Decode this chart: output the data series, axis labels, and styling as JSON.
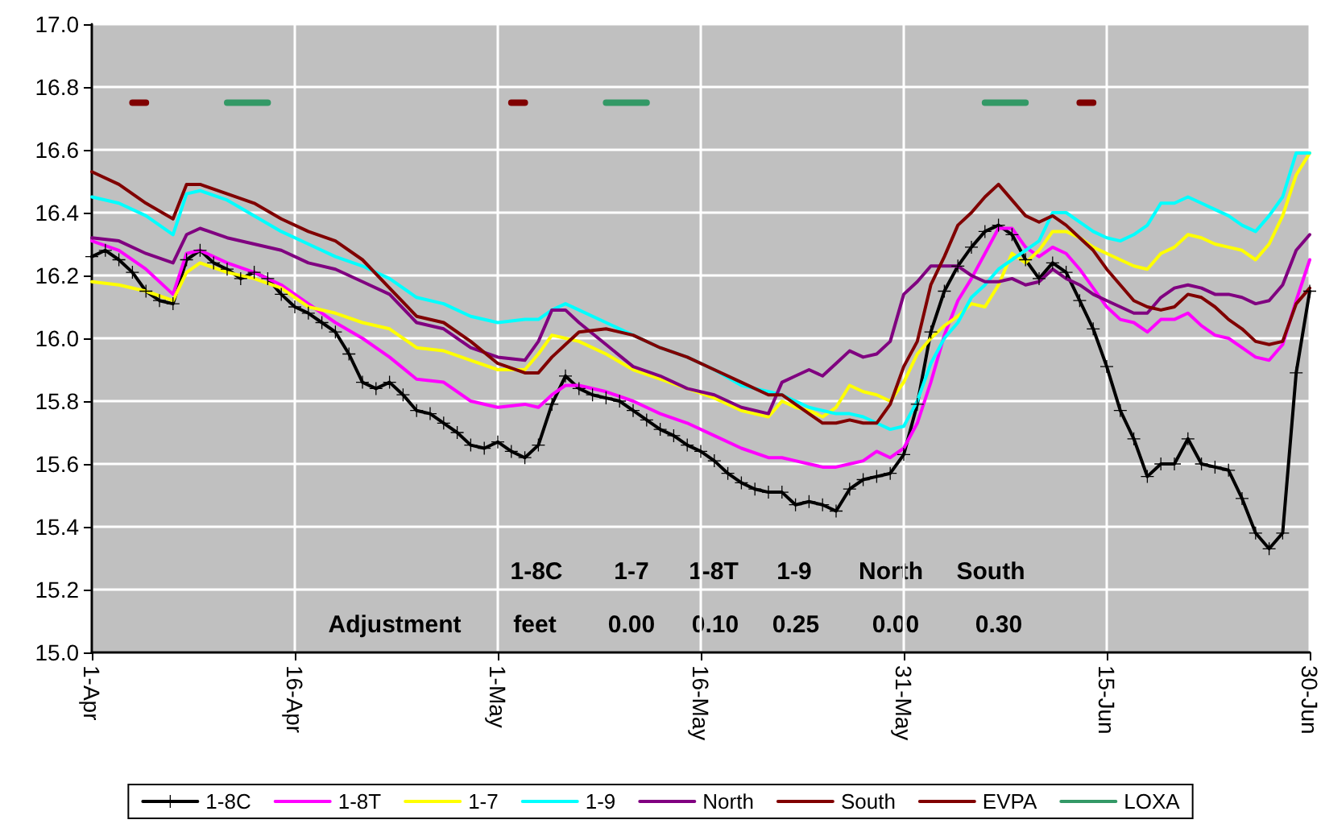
{
  "chart_data": {
    "type": "line",
    "x": [
      "--04-01",
      "--04-03",
      "--04-05",
      "--04-07",
      "--04-08",
      "--04-09",
      "--04-11",
      "--04-13",
      "--04-15",
      "--04-17",
      "--04-19",
      "--04-21",
      "--04-23",
      "--04-25",
      "--04-27",
      "--04-29",
      "--05-01",
      "--05-03",
      "--05-04",
      "--05-05",
      "--05-06",
      "--05-07",
      "--05-09",
      "--05-11",
      "--05-13",
      "--05-15",
      "--05-17",
      "--05-19",
      "--05-21",
      "--05-22",
      "--05-23",
      "--05-24",
      "--05-25",
      "--05-26",
      "--05-27",
      "--05-28",
      "--05-29",
      "--05-30",
      "--05-31",
      "--06-01",
      "--06-02",
      "--06-03",
      "--06-04",
      "--06-05",
      "--06-06",
      "--06-07",
      "--06-08",
      "--06-09",
      "--06-10",
      "--06-11",
      "--06-12",
      "--06-13",
      "--06-14",
      "--06-15",
      "--06-16",
      "--06-17",
      "--06-18",
      "--06-19",
      "--06-20",
      "--06-21",
      "--06-22",
      "--06-23",
      "--06-24",
      "--06-25",
      "--06-26",
      "--06-27",
      "--06-28",
      "--06-29",
      "--06-30"
    ],
    "series": [
      {
        "name": "1-8C",
        "color": "#000000",
        "marker": "cross",
        "x": [
          "--04-01",
          "--04-02",
          "--04-03",
          "--04-04",
          "--04-05",
          "--04-06",
          "--04-07",
          "--04-08",
          "--04-09",
          "--04-10",
          "--04-11",
          "--04-12",
          "--04-13",
          "--04-14",
          "--04-15",
          "--04-16",
          "--04-17",
          "--04-18",
          "--04-19",
          "--04-20",
          "--04-21",
          "--04-22",
          "--04-23",
          "--04-24",
          "--04-25",
          "--04-26",
          "--04-27",
          "--04-28",
          "--04-29",
          "--04-30",
          "--05-01",
          "--05-02",
          "--05-03",
          "--05-04",
          "--05-05",
          "--05-06",
          "--05-07",
          "--05-08",
          "--05-09",
          "--05-10",
          "--05-11",
          "--05-12",
          "--05-13",
          "--05-14",
          "--05-15",
          "--05-16",
          "--05-17",
          "--05-18",
          "--05-19",
          "--05-20",
          "--05-21",
          "--05-22",
          "--05-23",
          "--05-24",
          "--05-25",
          "--05-26",
          "--05-27",
          "--05-28",
          "--05-29",
          "--05-30",
          "--05-31",
          "--06-01",
          "--06-02",
          "--06-03",
          "--06-04",
          "--06-05",
          "--06-06",
          "--06-07",
          "--06-08",
          "--06-09",
          "--06-10",
          "--06-11",
          "--06-12",
          "--06-13",
          "--06-14",
          "--06-15",
          "--06-16",
          "--06-17",
          "--06-18",
          "--06-19",
          "--06-20",
          "--06-21",
          "--06-22",
          "--06-23",
          "--06-24",
          "--06-25",
          "--06-26",
          "--06-27",
          "--06-28",
          "--06-29",
          "--06-30"
        ],
        "values": [
          16.26,
          16.28,
          16.25,
          16.21,
          16.15,
          16.12,
          16.11,
          16.25,
          16.28,
          16.24,
          16.22,
          16.19,
          16.21,
          16.19,
          16.14,
          16.1,
          16.08,
          16.05,
          16.02,
          15.95,
          15.86,
          15.84,
          15.86,
          15.82,
          15.77,
          15.76,
          15.73,
          15.7,
          15.66,
          15.65,
          15.67,
          15.64,
          15.62,
          15.66,
          15.79,
          15.88,
          15.84,
          15.82,
          15.81,
          15.8,
          15.77,
          15.74,
          15.71,
          15.69,
          15.66,
          15.64,
          15.61,
          15.57,
          15.54,
          15.52,
          15.51,
          15.51,
          15.47,
          15.48,
          15.47,
          15.45,
          15.52,
          15.55,
          15.56,
          15.57,
          15.63,
          15.79,
          16.02,
          16.15,
          16.23,
          16.29,
          16.34,
          16.36,
          16.33,
          16.25,
          16.19,
          16.24,
          16.21,
          16.12,
          16.03,
          15.91,
          15.77,
          15.68,
          15.56,
          15.6,
          15.6,
          15.68,
          15.6,
          15.59,
          15.58,
          15.49,
          15.38,
          15.33,
          15.38,
          15.89,
          16.15
        ]
      },
      {
        "name": "1-8T",
        "color": "#ff00ff",
        "values": [
          16.31,
          16.28,
          16.22,
          16.14,
          16.27,
          16.28,
          16.24,
          16.21,
          16.17,
          16.11,
          16.05,
          16.0,
          15.94,
          15.87,
          15.86,
          15.8,
          15.78,
          15.79,
          15.78,
          15.82,
          15.85,
          15.85,
          15.83,
          15.8,
          15.76,
          15.73,
          15.69,
          15.65,
          15.62,
          15.62,
          15.61,
          15.6,
          15.59,
          15.59,
          15.6,
          15.61,
          15.64,
          15.62,
          15.65,
          15.73,
          15.86,
          16.01,
          16.12,
          16.19,
          16.27,
          16.35,
          16.35,
          16.29,
          16.26,
          16.29,
          16.27,
          16.22,
          16.16,
          16.1,
          16.06,
          16.05,
          16.02,
          16.06,
          16.06,
          16.08,
          16.04,
          16.01,
          16.0,
          15.97,
          15.94,
          15.93,
          15.98,
          16.12,
          16.25
        ]
      },
      {
        "name": "1-7",
        "color": "#ffff00",
        "values": [
          16.18,
          16.17,
          16.15,
          16.12,
          16.21,
          16.24,
          16.21,
          16.19,
          16.16,
          16.1,
          16.08,
          16.05,
          16.03,
          15.97,
          15.96,
          15.93,
          15.9,
          15.9,
          15.95,
          16.01,
          16.0,
          15.99,
          15.95,
          15.9,
          15.87,
          15.84,
          15.81,
          15.77,
          15.75,
          15.8,
          15.78,
          15.77,
          15.75,
          15.78,
          15.85,
          15.83,
          15.82,
          15.8,
          15.86,
          15.95,
          16.0,
          16.04,
          16.07,
          16.11,
          16.1,
          16.17,
          16.27,
          16.24,
          16.28,
          16.34,
          16.34,
          16.32,
          16.29,
          16.27,
          16.25,
          16.23,
          16.22,
          16.27,
          16.29,
          16.33,
          16.32,
          16.3,
          16.29,
          16.28,
          16.25,
          16.3,
          16.39,
          16.52,
          16.59
        ]
      },
      {
        "name": "1-9",
        "color": "#00ffff",
        "values": [
          16.45,
          16.43,
          16.39,
          16.33,
          16.46,
          16.47,
          16.44,
          16.39,
          16.34,
          16.3,
          16.26,
          16.23,
          16.19,
          16.13,
          16.11,
          16.07,
          16.05,
          16.06,
          16.06,
          16.09,
          16.11,
          16.09,
          16.05,
          16.01,
          15.97,
          15.94,
          15.9,
          15.85,
          15.83,
          15.82,
          15.8,
          15.78,
          15.77,
          15.76,
          15.76,
          15.75,
          15.73,
          15.71,
          15.72,
          15.8,
          15.92,
          16.0,
          16.05,
          16.13,
          16.17,
          16.22,
          16.25,
          16.28,
          16.31,
          16.4,
          16.4,
          16.37,
          16.34,
          16.32,
          16.31,
          16.33,
          16.36,
          16.43,
          16.43,
          16.45,
          16.43,
          16.41,
          16.39,
          16.36,
          16.34,
          16.39,
          16.45,
          16.59,
          16.59
        ]
      },
      {
        "name": "North",
        "color": "#800080",
        "values": [
          16.32,
          16.31,
          16.27,
          16.24,
          16.33,
          16.35,
          16.32,
          16.3,
          16.28,
          16.24,
          16.22,
          16.18,
          16.14,
          16.05,
          16.03,
          15.97,
          15.94,
          15.93,
          15.99,
          16.09,
          16.09,
          16.05,
          15.98,
          15.91,
          15.88,
          15.84,
          15.82,
          15.78,
          15.76,
          15.86,
          15.88,
          15.9,
          15.88,
          15.92,
          15.96,
          15.94,
          15.95,
          15.99,
          16.14,
          16.18,
          16.23,
          16.23,
          16.23,
          16.2,
          16.18,
          16.18,
          16.19,
          16.17,
          16.18,
          16.22,
          16.19,
          16.17,
          16.14,
          16.12,
          16.1,
          16.08,
          16.08,
          16.13,
          16.16,
          16.17,
          16.16,
          16.14,
          16.14,
          16.13,
          16.11,
          16.12,
          16.17,
          16.28,
          16.33
        ]
      },
      {
        "name": "South",
        "color": "#800000",
        "values": [
          16.53,
          16.49,
          16.43,
          16.38,
          16.49,
          16.49,
          16.46,
          16.43,
          16.38,
          16.34,
          16.31,
          16.25,
          16.16,
          16.07,
          16.05,
          15.99,
          15.92,
          15.89,
          15.89,
          15.94,
          15.98,
          16.02,
          16.03,
          16.01,
          15.97,
          15.94,
          15.9,
          15.86,
          15.82,
          15.82,
          15.79,
          15.76,
          15.73,
          15.73,
          15.74,
          15.73,
          15.73,
          15.79,
          15.91,
          15.99,
          16.17,
          16.26,
          16.36,
          16.4,
          16.45,
          16.49,
          16.44,
          16.39,
          16.37,
          16.39,
          16.36,
          16.32,
          16.28,
          16.22,
          16.17,
          16.12,
          16.1,
          16.09,
          16.1,
          16.14,
          16.13,
          16.1,
          16.06,
          16.03,
          15.99,
          15.98,
          15.99,
          16.11,
          16.16
        ]
      },
      {
        "name": "EVPA",
        "color": "#800000",
        "x": [
          "--04-04",
          "--04-05",
          "--04-18",
          "--05-02",
          "--05-03",
          "--05-20",
          "--06-13",
          "--06-14"
        ],
        "values": [
          16.75,
          16.75,
          null,
          16.75,
          16.75,
          null,
          16.75,
          16.75
        ]
      },
      {
        "name": "LOXA",
        "color": "#339966",
        "x": [
          "--04-11",
          "--04-14",
          "--04-25",
          "--05-09",
          "--05-12",
          "--05-25",
          "--06-06",
          "--06-09"
        ],
        "values": [
          16.75,
          16.75,
          null,
          16.75,
          16.75,
          null,
          16.75,
          16.75
        ]
      }
    ],
    "xlim": [
      "--04-01",
      "--06-30"
    ],
    "xticks": [
      {
        "value": "--04-01",
        "label": "1-Apr"
      },
      {
        "value": "--04-16",
        "label": "16-Apr"
      },
      {
        "value": "--05-01",
        "label": "1-May"
      },
      {
        "value": "--05-16",
        "label": "16-May"
      },
      {
        "value": "--05-31",
        "label": "31-May"
      },
      {
        "value": "--06-15",
        "label": "15-Jun"
      },
      {
        "value": "--06-30",
        "label": "30-Jun"
      }
    ],
    "ylim": [
      15,
      17
    ],
    "yticks": [
      {
        "value": 15,
        "label": "15.0"
      },
      15.2,
      15.4,
      15.6,
      15.8,
      {
        "value": 16,
        "label": "16.0"
      },
      16.2,
      16.4,
      16.6,
      16.8,
      {
        "value": 17,
        "label": "17.0"
      }
    ],
    "annotations": [
      "1-8C",
      "1-7",
      "1-8T",
      "1-9",
      "North",
      "South",
      "Adjustment",
      "feet",
      "0.00",
      "0.10",
      "0.25",
      "0.00",
      "0.30"
    ],
    "grid": true,
    "legend": "bottom"
  }
}
